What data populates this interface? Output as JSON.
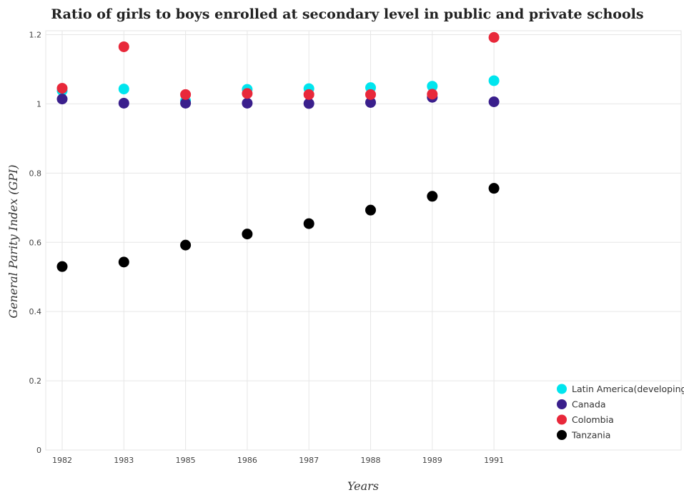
{
  "chart_data": {
    "type": "scatter",
    "title": "Ratio of girls to boys enrolled at secondary level in public and private schools",
    "xlabel": "Years",
    "ylabel": "General Parity Index (GPI)",
    "categories": [
      "1982",
      "1983",
      "1985",
      "1986",
      "1987",
      "1988",
      "1989",
      "1991"
    ],
    "ylim": [
      0,
      1.2
    ],
    "yticks": [
      "0",
      "0.2",
      "0.4",
      "0.6",
      "0.8",
      "1",
      "1.2"
    ],
    "grid": true,
    "legend_position": "bottom-right",
    "series": [
      {
        "name": "Latin America(developing only)",
        "color": "#00e5ee",
        "values": [
          1.038,
          1.043,
          1.009,
          1.042,
          1.044,
          1.047,
          1.051,
          1.067
        ]
      },
      {
        "name": "Canada",
        "color": "#3a1f8c",
        "values": [
          1.014,
          1.002,
          1.002,
          1.002,
          1.001,
          1.004,
          1.019,
          1.006
        ]
      },
      {
        "name": "Colombia",
        "color": "#e8283a",
        "values": [
          1.045,
          1.165,
          1.027,
          1.03,
          1.027,
          1.027,
          1.028,
          1.192
        ]
      },
      {
        "name": "Tanzania",
        "color": "#000000",
        "values": [
          0.53,
          0.543,
          0.592,
          0.624,
          0.654,
          0.693,
          0.733,
          0.756
        ]
      }
    ]
  }
}
